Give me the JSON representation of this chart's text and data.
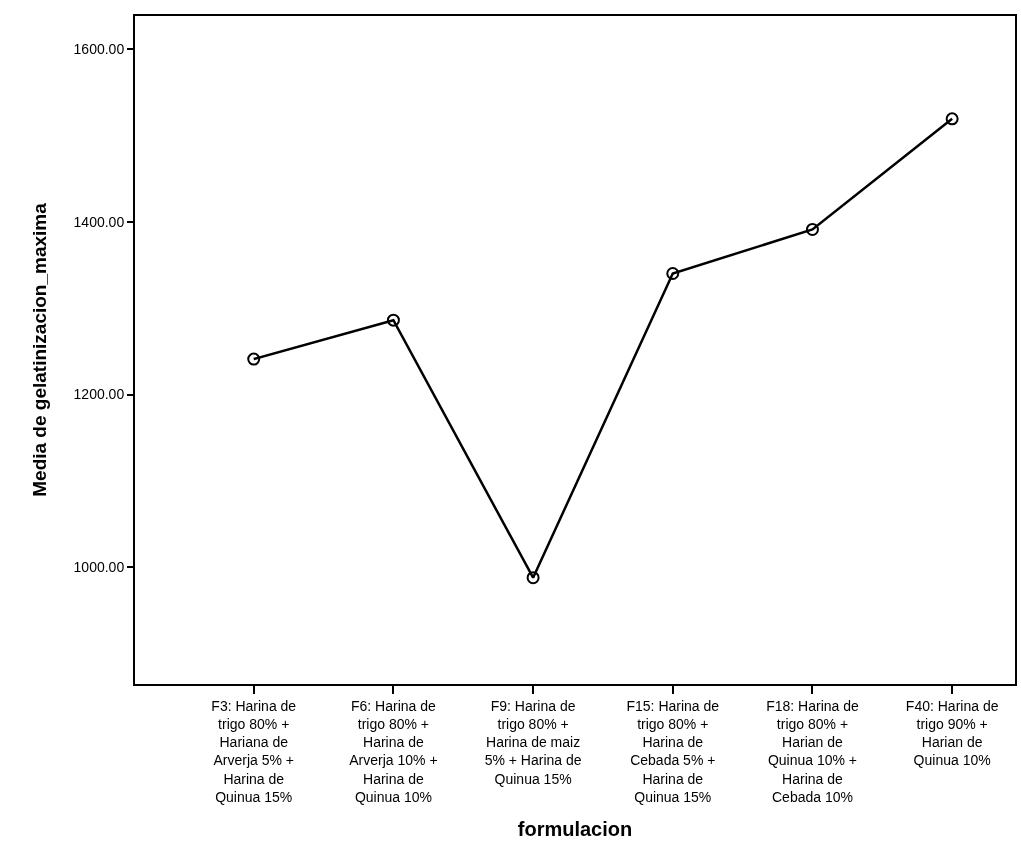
{
  "chart_data": {
    "type": "line",
    "xlabel": "formulacion",
    "ylabel": "Media de gelatinizacion_maxima",
    "categories": [
      "F3: Harina de trigo 80% + Hariana de Arverja 5% + Harina de Quinua 15%",
      "F6: Harina de trigo 80% + Harina de Arverja 10% + Harina de Quinua 10%",
      "F9: Harina de trigo 80% + Harina de maiz 5% + Harina de Quinua 15%",
      "F15: Harina de trigo 80% + Harina de Cebada 5% + Harina de Quinua 15%",
      "F18: Harina de trigo 80% + Harian de Quinua 10% + Harina de Cebada 10%",
      "F40: Harina de trigo 90% + Harian de Quinua 10%"
    ],
    "series": [
      {
        "color": "#000000",
        "values": [
          1241,
          1286,
          988,
          1340,
          1391,
          1519
        ]
      }
    ],
    "ylim": [
      865,
      1638
    ],
    "yticks": [
      {
        "value": 1000,
        "label": "1000.00"
      },
      {
        "value": 1200,
        "label": "1200.00"
      },
      {
        "value": 1400,
        "label": "1400.00"
      },
      {
        "value": 1600,
        "label": "1600.00"
      }
    ],
    "marker": "circle",
    "line_style": "solid"
  }
}
